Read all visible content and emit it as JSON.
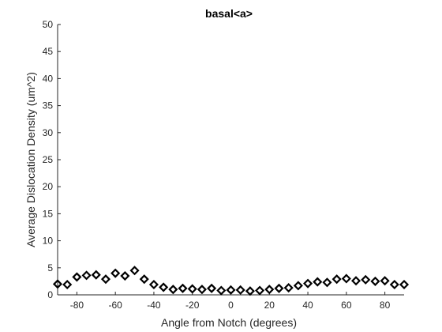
{
  "chart_data": {
    "type": "scatter",
    "title": "basal<a>",
    "xlabel": "Angle from Notch (degrees)",
    "ylabel": "Average Dislocation Density (um^2)",
    "xlim": [
      -90,
      90
    ],
    "ylim": [
      0,
      50
    ],
    "xticks": [
      -80,
      -60,
      -40,
      -20,
      0,
      20,
      40,
      60,
      80
    ],
    "yticks": [
      0,
      5,
      10,
      15,
      20,
      25,
      30,
      35,
      40,
      45,
      50
    ],
    "grid": false,
    "marker": "diamond",
    "marker_color": "#000000",
    "series": [
      {
        "x": [
          -90,
          -85,
          -80,
          -75,
          -70,
          -65,
          -60,
          -55,
          -50,
          -45,
          -40,
          -35,
          -30,
          -25,
          -20,
          -15,
          -10,
          -5,
          0,
          5,
          10,
          15,
          20,
          25,
          30,
          35,
          40,
          45,
          50,
          55,
          60,
          65,
          70,
          75,
          80,
          85,
          90
        ],
        "y": [
          2.0,
          1.9,
          3.3,
          3.6,
          3.7,
          2.9,
          4.0,
          3.5,
          4.5,
          2.9,
          1.9,
          1.4,
          1.0,
          1.2,
          1.1,
          1.0,
          1.2,
          0.8,
          0.9,
          0.9,
          0.7,
          0.8,
          1.0,
          1.2,
          1.3,
          1.7,
          2.1,
          2.4,
          2.3,
          2.9,
          3.0,
          2.6,
          2.8,
          2.5,
          2.6,
          1.9,
          1.9
        ]
      }
    ]
  }
}
